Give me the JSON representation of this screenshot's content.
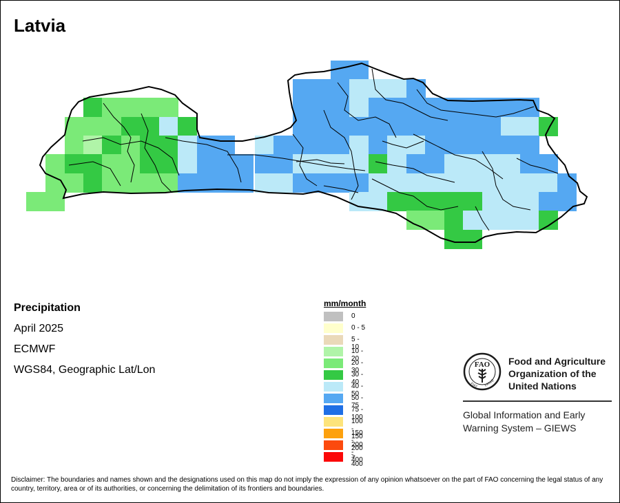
{
  "title": "Latvia",
  "info": {
    "variable": "Precipitation",
    "period": "April 2025",
    "source": "ECMWF",
    "projection": "WGS84, Geographic Lat/Lon"
  },
  "legend": {
    "title": "mm/month",
    "items": [
      {
        "label": "0",
        "color": "#c0c0c0"
      },
      {
        "label": "0 - 5",
        "color": "#ffffcc"
      },
      {
        "label": "5 - 10",
        "color": "#ead9b9"
      },
      {
        "label": "10 - 20",
        "color": "#b0f4a8"
      },
      {
        "label": "20 - 30",
        "color": "#7bea78"
      },
      {
        "label": "30 - 40",
        "color": "#34c944"
      },
      {
        "label": "40 - 50",
        "color": "#bbe9f8"
      },
      {
        "label": "50 - 75",
        "color": "#55a8f2"
      },
      {
        "label": "75 - 100",
        "color": "#1f6fe5"
      },
      {
        "label": "100 - 150",
        "color": "#fde47b"
      },
      {
        "label": "150 - 200",
        "color": "#fda10e"
      },
      {
        "label": "200 - 400",
        "color": "#fc4a0e"
      },
      {
        "label": "> 400",
        "color": "#fb0808"
      }
    ]
  },
  "organization": {
    "name_line1": "Food and Agriculture",
    "name_line2": "Organization of the",
    "name_line3": "United Nations",
    "logo_text": "FAO",
    "logo_motto_left": "FIAT",
    "logo_motto_right": "PANIS",
    "system_line1": "Global Information and Early",
    "system_line2": "Warning System – GIEWS"
  },
  "disclaimer": "Disclaimer: The boundaries and names shown and the designations used on this map do not imply the expression of any opinion whatsoever on the part of FAO concerning the legal status of any country, territory, area or of its authorities, or concerning the delimitation of its frontiers and boundaries."
}
